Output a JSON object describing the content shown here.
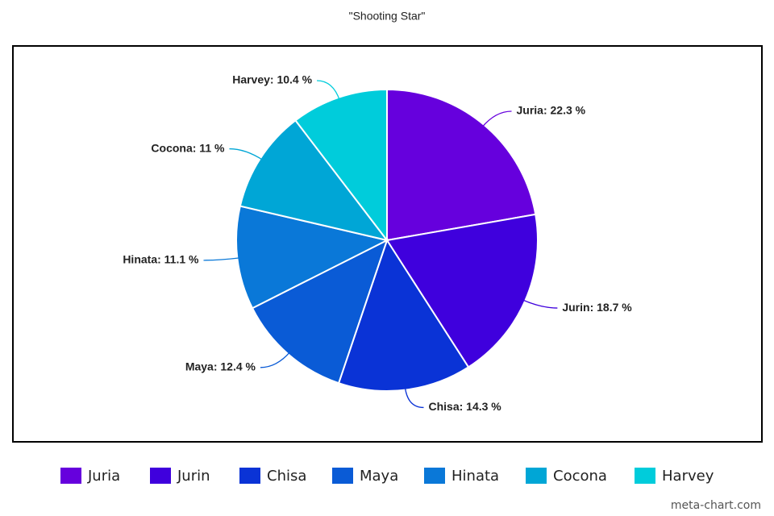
{
  "chart_data": {
    "type": "pie",
    "title": "\"Shooting Star\"",
    "watermark": "meta-chart.com",
    "categories": [
      "Juria",
      "Jurin",
      "Chisa",
      "Maya",
      "Hinata",
      "Cocona",
      "Harvey"
    ],
    "values": [
      22.3,
      18.7,
      14.3,
      12.4,
      11.1,
      11,
      10.4
    ],
    "value_labels": [
      "Juria: 22.3 %",
      "Jurin: 18.7 %",
      "Chisa: 14.3 %",
      "Maya: 12.4 %",
      "Hinata: 11.1 %",
      "Cocona: 11 %",
      "Harvey: 10.4 %"
    ],
    "colors": [
      "#6600dd",
      "#3f00dd",
      "#0a33d6",
      "#0a5bd6",
      "#0a78d8",
      "#00a6d6",
      "#00ccdb"
    ],
    "legend": "bottom"
  }
}
